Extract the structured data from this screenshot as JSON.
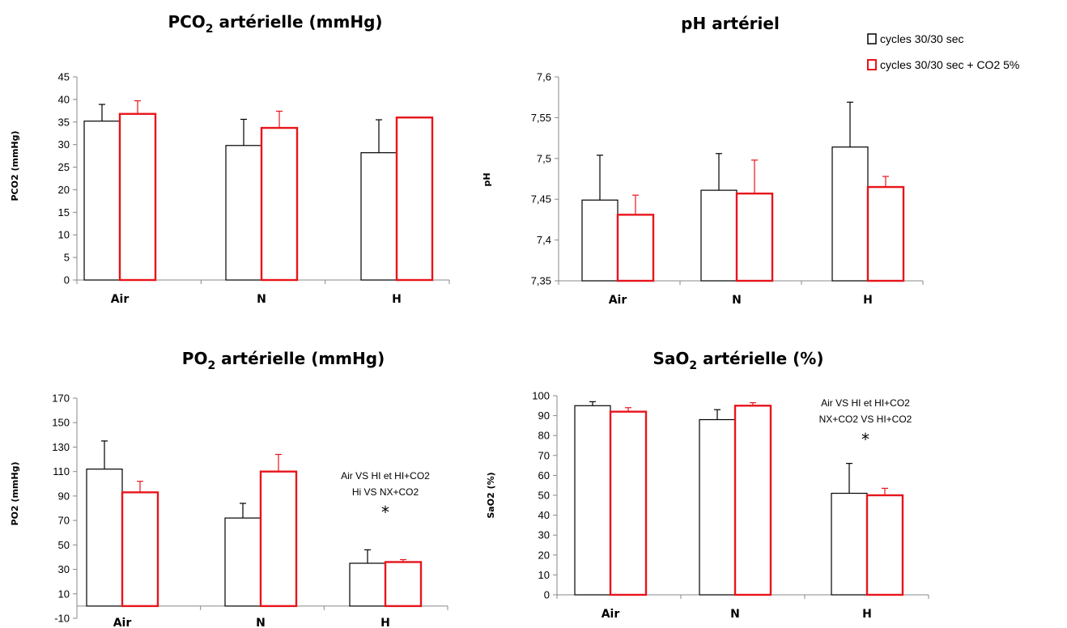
{
  "legend": {
    "items": [
      {
        "label": "cycles 30/30 sec",
        "color": "#000000"
      },
      {
        "label": "cycles 30/30 sec + CO2 5%",
        "color": "#e8141b"
      }
    ]
  },
  "colors": {
    "series1": "#000000",
    "series2": "#e8141b",
    "axis": "#888888"
  },
  "chart_data": [
    {
      "type": "bar",
      "title_main": "PCO",
      "title_sub": "2",
      "title_rest": " artérielle (mmHg)",
      "ylabel": "PCO2 (mmHg)",
      "categories": [
        "Air",
        "N",
        "H"
      ],
      "ylim": [
        0,
        45
      ],
      "yticks": [
        0,
        5,
        10,
        15,
        20,
        25,
        30,
        35,
        40,
        45
      ],
      "series": [
        {
          "values": [
            35.2,
            29.8,
            28.2
          ],
          "errors": [
            3.7,
            5.8,
            7.3
          ]
        },
        {
          "values": [
            36.8,
            33.7,
            36.0
          ],
          "errors": [
            2.9,
            3.7,
            0.0
          ]
        }
      ],
      "annotations": []
    },
    {
      "type": "bar",
      "title_main": "pH artériel",
      "title_sub": "",
      "title_rest": "",
      "ylabel": "pH",
      "categories": [
        "Air",
        "N",
        "H"
      ],
      "ylim": [
        7.35,
        7.6
      ],
      "yticks": [
        7.35,
        7.4,
        7.45,
        7.5,
        7.55,
        7.6
      ],
      "ytick_labels": [
        "7,35",
        "7,4",
        "7,45",
        "7,5",
        "7,55",
        "7,6"
      ],
      "series": [
        {
          "values": [
            7.449,
            7.461,
            7.514
          ],
          "errors": [
            0.055,
            0.045,
            0.055
          ]
        },
        {
          "values": [
            7.431,
            7.457,
            7.465
          ],
          "errors": [
            0.024,
            0.041,
            0.013
          ]
        }
      ],
      "annotations": []
    },
    {
      "type": "bar",
      "title_main": "PO",
      "title_sub": "2",
      "title_rest": " artérielle (mmHg)",
      "ylabel": "PO2 (mmHg)",
      "categories": [
        "Air",
        "N",
        "H"
      ],
      "ylim": [
        -10,
        170
      ],
      "baseline": 0,
      "yticks": [
        -10,
        10,
        30,
        50,
        70,
        90,
        110,
        130,
        150,
        170
      ],
      "series": [
        {
          "values": [
            112,
            72,
            35
          ],
          "errors": [
            23,
            12,
            11
          ]
        },
        {
          "values": [
            93,
            110,
            36
          ],
          "errors": [
            9,
            14,
            2
          ]
        }
      ],
      "annotations": [
        "Air VS HI et HI+CO2",
        "Hi VS NX+CO2",
        "*"
      ]
    },
    {
      "type": "bar",
      "title_main": "SaO",
      "title_sub": "2",
      "title_rest": " artérielle (%)",
      "ylabel": "SaO2 (%)",
      "categories": [
        "Air",
        "N",
        "H"
      ],
      "ylim": [
        0,
        100
      ],
      "yticks": [
        0,
        10,
        20,
        30,
        40,
        50,
        60,
        70,
        80,
        90,
        100
      ],
      "series": [
        {
          "values": [
            95,
            88,
            51
          ],
          "errors": [
            2,
            5,
            15
          ]
        },
        {
          "values": [
            92,
            95,
            50
          ],
          "errors": [
            2,
            1.5,
            3.5
          ]
        }
      ],
      "annotations": [
        "Air VS HI et HI+CO2",
        "NX+CO2 VS HI+CO2",
        "*"
      ]
    }
  ]
}
